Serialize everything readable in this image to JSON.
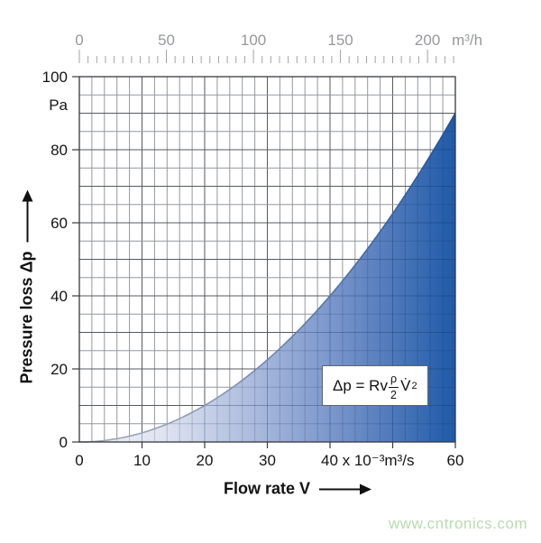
{
  "chart_data": {
    "type": "area",
    "x_bottom": {
      "title": "Flow rate V",
      "range": [
        0,
        60
      ],
      "grid_step": 2,
      "tick_step": 10,
      "tick_labels": [
        {
          "value": 0,
          "label": "0"
        },
        {
          "value": 10,
          "label": "10"
        },
        {
          "value": 20,
          "label": "20"
        },
        {
          "value": 30,
          "label": "30"
        },
        {
          "value": 40,
          "label": "40 x 10⁻³m³/s"
        },
        {
          "value": 60,
          "label": "60"
        }
      ]
    },
    "x_top": {
      "unit": "m³/h",
      "major_ticks": [
        0,
        50,
        100,
        150,
        200
      ],
      "minor_step": 5,
      "minor_max": 215
    },
    "y": {
      "title": "Pressure loss Δp",
      "unit": "Pa",
      "range": [
        0,
        100
      ],
      "grid_step": 5,
      "major_ticks": [
        0,
        20,
        40,
        60,
        80,
        100
      ]
    },
    "series": [
      {
        "name": "pressure-loss-curve",
        "model": "quadratic",
        "coefficient": 0.025,
        "points": [
          [
            0,
            0
          ],
          [
            10,
            2.5
          ],
          [
            20,
            10
          ],
          [
            30,
            22.5
          ],
          [
            40,
            40
          ],
          [
            50,
            62.5
          ],
          [
            60,
            90
          ]
        ]
      }
    ],
    "legend": null,
    "grid": "on",
    "colors": {
      "fill_start": "#f2f3f8",
      "fill_mid": "#aebdde",
      "fill_end": "#1f5aa8",
      "curve_start": "#a6abb2",
      "curve_end": "#1c4f9a",
      "grid_minor": "#94989d",
      "grid_major": "#55595e",
      "border": "#36393e",
      "top_axis_text": "#96989b",
      "tick_text": "#141414"
    }
  },
  "formula": {
    "lhs": "Δp = Rv",
    "numerator": "ρ",
    "denominator": "2",
    "variable": "V̇",
    "exponent": "2"
  },
  "watermark": {
    "text": "www.cntronics.com",
    "color": "#b6dcae"
  }
}
